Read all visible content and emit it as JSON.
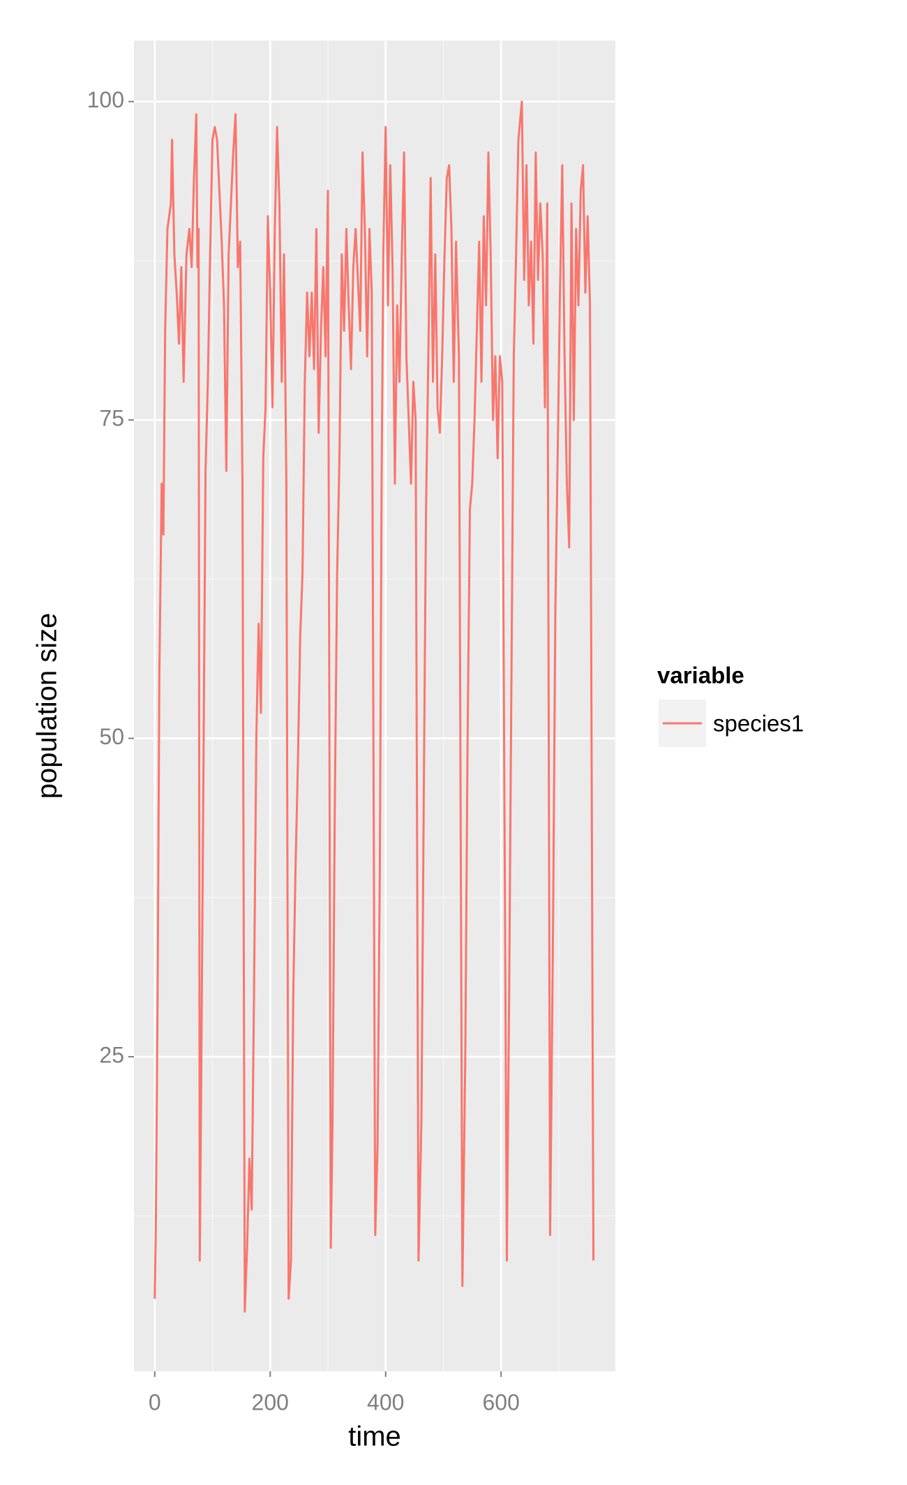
{
  "chart_data": {
    "type": "line",
    "x_label": "time",
    "y_label": "population size",
    "legend_title": "variable",
    "x": [
      0,
      2,
      5,
      8,
      12,
      15,
      18,
      22,
      28,
      30,
      34,
      38,
      42,
      46,
      50,
      55,
      60,
      64,
      68,
      72,
      74,
      76,
      78,
      80,
      84,
      88,
      92,
      96,
      100,
      104,
      108,
      112,
      116,
      120,
      124,
      128,
      132,
      136,
      140,
      144,
      148,
      152,
      156,
      160,
      164,
      168,
      172,
      176,
      180,
      184,
      188,
      192,
      196,
      200,
      204,
      208,
      212,
      216,
      220,
      224,
      228,
      232,
      236,
      240,
      244,
      248,
      252,
      256,
      260,
      264,
      268,
      272,
      276,
      280,
      284,
      288,
      292,
      296,
      300,
      305,
      308,
      312,
      316,
      320,
      324,
      328,
      332,
      336,
      340,
      344,
      348,
      352,
      356,
      360,
      364,
      368,
      372,
      376,
      382,
      386,
      390,
      393,
      396,
      400,
      404,
      408,
      412,
      416,
      420,
      424,
      428,
      432,
      436,
      440,
      444,
      448,
      452,
      457,
      462,
      466,
      470,
      474,
      478,
      482,
      486,
      490,
      494,
      498,
      502,
      506,
      510,
      514,
      518,
      522,
      527,
      533,
      538,
      542,
      546,
      550,
      554,
      558,
      562,
      566,
      570,
      574,
      578,
      582,
      586,
      590,
      594,
      598,
      602,
      610,
      614,
      618,
      622,
      626,
      630,
      636,
      640,
      644,
      648,
      652,
      656,
      660,
      664,
      668,
      672,
      676,
      680,
      685,
      690,
      694,
      698,
      702,
      706,
      710,
      714,
      718,
      722,
      726,
      730,
      734,
      738,
      742,
      746,
      750,
      754,
      760
    ],
    "series": [
      {
        "name": "species1",
        "color": "#F8766D",
        "values": [
          6,
          12,
          30,
          55,
          70,
          66,
          82,
          90,
          92,
          97,
          88,
          85,
          81,
          87,
          78,
          88,
          90,
          87,
          94,
          99,
          87,
          90,
          9,
          20,
          45,
          71,
          78,
          88,
          97,
          98,
          97,
          93,
          89,
          84,
          71,
          88,
          92,
          96,
          99,
          87,
          89,
          70,
          5,
          10,
          17,
          13,
          30,
          50,
          59,
          52,
          72,
          76,
          91,
          85,
          76,
          90,
          98,
          92,
          78,
          88,
          70,
          6,
          9,
          30,
          40,
          48,
          58,
          63,
          78,
          85,
          80,
          85,
          79,
          90,
          74,
          82,
          87,
          80,
          93,
          10,
          20,
          45,
          63,
          72,
          88,
          82,
          90,
          84,
          79,
          87,
          90,
          86,
          82,
          96,
          90,
          80,
          90,
          85,
          11,
          18,
          40,
          70,
          88,
          98,
          84,
          95,
          87,
          70,
          84,
          78,
          88,
          96,
          80,
          75,
          70,
          78,
          75,
          9,
          20,
          45,
          68,
          80,
          94,
          78,
          88,
          76,
          74,
          80,
          88,
          94,
          95,
          90,
          78,
          89,
          80,
          7,
          25,
          50,
          68,
          70,
          75,
          82,
          89,
          78,
          91,
          84,
          96,
          88,
          75,
          80,
          72,
          80,
          78,
          9,
          30,
          55,
          80,
          88,
          97,
          100,
          86,
          95,
          84,
          89,
          81,
          96,
          86,
          92,
          88,
          76,
          92,
          11,
          35,
          60,
          72,
          85,
          95,
          80,
          70,
          65,
          92,
          75,
          90,
          84,
          93,
          95,
          85,
          91,
          84,
          9
        ]
      }
    ],
    "xlim": [
      -36,
      798
    ],
    "ylim": [
      0.3,
      104.8
    ],
    "xticks": [
      0,
      200,
      400,
      600
    ],
    "yticks": [
      25,
      50,
      75,
      100
    ],
    "xminor": [
      100,
      300,
      500,
      700
    ],
    "yminor": [
      12.5,
      37.5,
      62.5,
      87.5
    ],
    "grid": true
  }
}
